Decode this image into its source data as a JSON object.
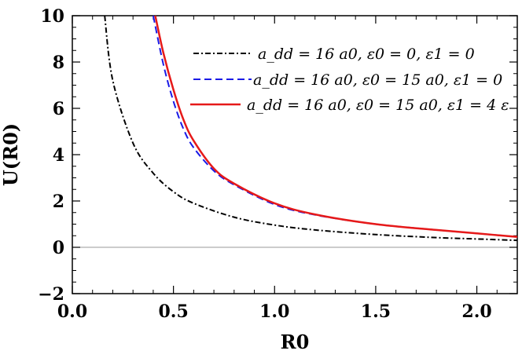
{
  "chart_data": {
    "type": "line",
    "title": "",
    "xlabel": "R0",
    "ylabel": "U(R0)",
    "xlim": [
      0,
      2.2
    ],
    "ylim": [
      -2,
      10
    ],
    "x_ticks": [
      "0.0",
      "0.5",
      "1.0",
      "1.5",
      "2.0"
    ],
    "y_ticks": [
      "-2",
      "0",
      "2",
      "4",
      "6",
      "8",
      "10"
    ],
    "grid": false,
    "legend_position": "top-right",
    "series": [
      {
        "name": "a_dd = 16 a0, ε0 = 0, ε1 = 0",
        "color": "#000000",
        "dash": "dashdot",
        "x": [
          0.16,
          0.2,
          0.3,
          0.4,
          0.5,
          0.6,
          0.8,
          1.0,
          1.2,
          1.5,
          1.8,
          2.0,
          2.2
        ],
        "y": [
          10.0,
          7.2,
          4.5,
          3.2,
          2.4,
          1.9,
          1.3,
          0.96,
          0.75,
          0.55,
          0.42,
          0.36,
          0.3
        ]
      },
      {
        "name": "a_dd = 16 a0, ε0 = 15 a0, ε1 = 0",
        "color": "#1a1ae6",
        "dash": "dashed",
        "x": [
          0.4,
          0.45,
          0.5,
          0.55,
          0.6,
          0.7,
          0.8,
          1.0,
          1.2,
          1.5,
          1.8,
          2.0,
          2.2
        ],
        "y": [
          10.0,
          7.9,
          6.3,
          5.1,
          4.3,
          3.3,
          2.7,
          1.85,
          1.4,
          1.0,
          0.75,
          0.6,
          0.45
        ]
      },
      {
        "name": "a_dd = 16 a0, ε0 = 15 a0, ε1 = 4 ε",
        "color": "#e61919",
        "dash": "solid",
        "x": [
          0.41,
          0.45,
          0.5,
          0.55,
          0.6,
          0.7,
          0.8,
          1.0,
          1.2,
          1.5,
          1.8,
          2.0,
          2.2
        ],
        "y": [
          10.0,
          8.4,
          6.8,
          5.5,
          4.6,
          3.4,
          2.75,
          1.9,
          1.42,
          1.0,
          0.75,
          0.6,
          0.45
        ]
      }
    ]
  }
}
